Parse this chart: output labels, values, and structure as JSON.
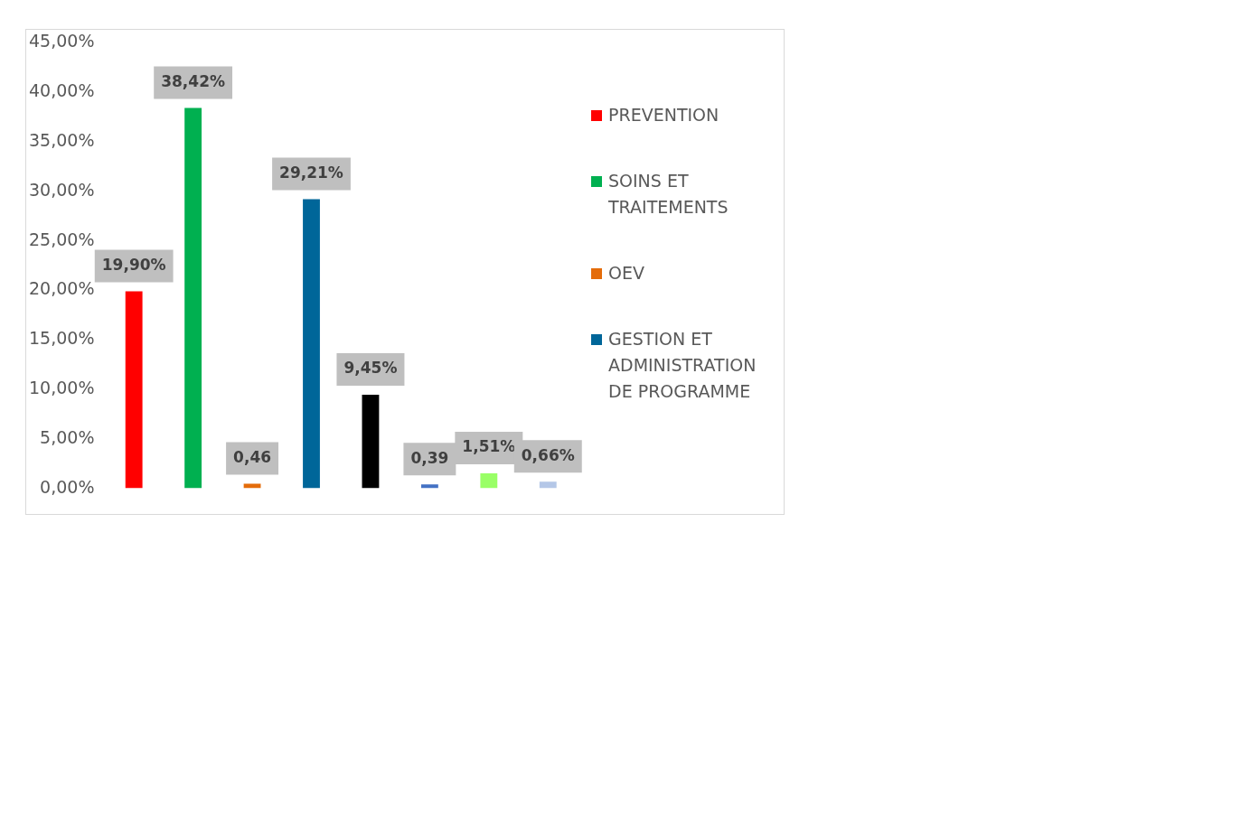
{
  "chart_data": {
    "type": "bar",
    "categories": [
      null,
      null,
      null,
      null,
      null,
      null,
      null,
      null
    ],
    "series": [
      {
        "name": "PREVENTION",
        "color": "#ff0000",
        "values": [
          19.9,
          null,
          null,
          null,
          null,
          null,
          null,
          null
        ],
        "value_labels": [
          "19,90%",
          null,
          null,
          null,
          null,
          null,
          null,
          null
        ]
      },
      {
        "name": "SOINS ET TRAITEMENTS",
        "color": "#00b050",
        "values": [
          null,
          38.42,
          null,
          null,
          null,
          null,
          null,
          null
        ],
        "value_labels": [
          null,
          "38,42%",
          null,
          null,
          null,
          null,
          null,
          null
        ]
      },
      {
        "name": "OEV",
        "color": "#e46c0a",
        "values": [
          null,
          null,
          0.46,
          null,
          null,
          null,
          null,
          null
        ],
        "value_labels": [
          null,
          null,
          "0,46",
          null,
          null,
          null,
          null,
          null
        ]
      },
      {
        "name": "GESTION ET ADMINISTRATION DE PROGRAMME",
        "color": "#006699",
        "values": [
          null,
          null,
          null,
          29.21,
          null,
          null,
          null,
          null
        ],
        "value_labels": [
          null,
          null,
          null,
          "29,21%",
          null,
          null,
          null,
          null
        ]
      },
      {
        "color": "#000000",
        "values": [
          null,
          null,
          null,
          null,
          9.45,
          null,
          null,
          null
        ],
        "value_labels": [
          null,
          null,
          null,
          null,
          "9,45%",
          null,
          null,
          null
        ]
      },
      {
        "color": "#4472c4",
        "values": [
          null,
          null,
          null,
          null,
          null,
          0.39,
          null,
          null
        ],
        "value_labels": [
          null,
          null,
          null,
          null,
          null,
          "0,39",
          null,
          null
        ]
      },
      {
        "color": "#99ff66",
        "values": [
          null,
          null,
          null,
          null,
          null,
          null,
          1.51,
          null
        ],
        "value_labels": [
          null,
          null,
          null,
          null,
          null,
          null,
          "1,51%",
          null
        ]
      },
      {
        "color": "#b4c7e7",
        "values": [
          null,
          null,
          null,
          null,
          null,
          null,
          null,
          0.66
        ],
        "value_labels": [
          null,
          null,
          null,
          null,
          null,
          null,
          null,
          "0,66%"
        ]
      }
    ],
    "ylim": [
      0,
      45
    ],
    "yticks": [
      {
        "value": 0,
        "label": "0,00%"
      },
      {
        "value": 5,
        "label": "5,00%"
      },
      {
        "value": 10,
        "label": "10,00%"
      },
      {
        "value": 15,
        "label": "15,00%"
      },
      {
        "value": 20,
        "label": "20,00%"
      },
      {
        "value": 25,
        "label": "25,00%"
      },
      {
        "value": 30,
        "label": "30,00%"
      },
      {
        "value": 35,
        "label": "35,00%"
      },
      {
        "value": 40,
        "label": "40,00%"
      },
      {
        "value": 45,
        "label": "45,00%"
      }
    ],
    "grid": false,
    "legend": "right",
    "stacked": true
  }
}
